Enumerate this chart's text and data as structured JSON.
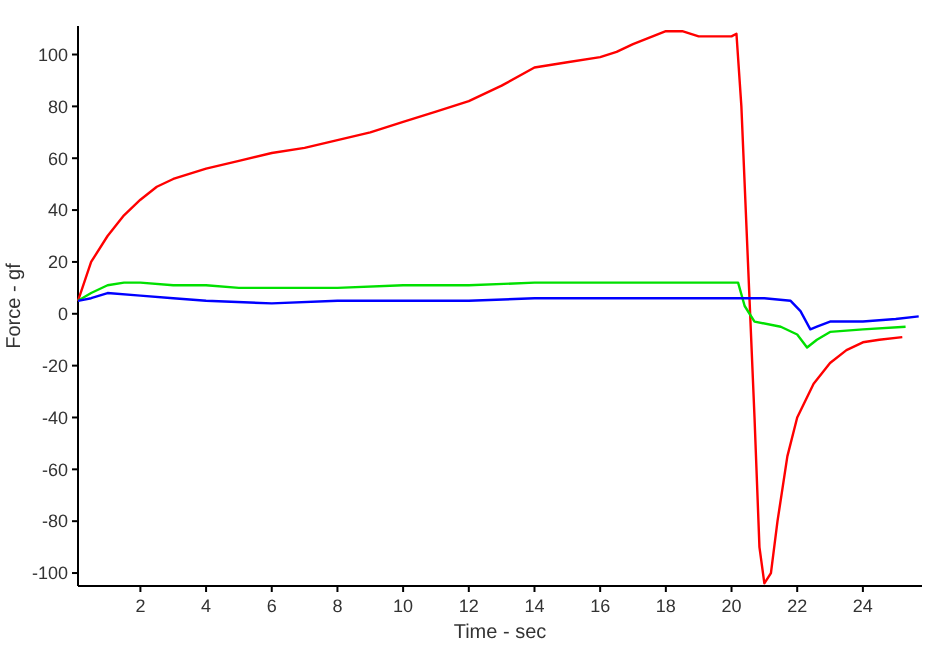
{
  "chart_data": {
    "type": "line",
    "xlabel": "Time - sec",
    "ylabel": "Force - gf",
    "xlim": [
      0.1,
      25.8
    ],
    "ylim": [
      -105,
      111
    ],
    "xticks": [
      2,
      4,
      6,
      8,
      10,
      12,
      14,
      16,
      18,
      20,
      22,
      24
    ],
    "yticks": [
      -100,
      -80,
      -60,
      -40,
      -20,
      0,
      20,
      40,
      60,
      80,
      100
    ],
    "marker": "none",
    "line_style": "solid",
    "series": [
      {
        "color": "#ff0000",
        "x": [
          0.1,
          0.5,
          1,
          1.5,
          2,
          2.5,
          3,
          4,
          5,
          6,
          7,
          8,
          9,
          10,
          11,
          12,
          13,
          14,
          15,
          16,
          16.5,
          17,
          18,
          18.5,
          19,
          20,
          20.15,
          20.3,
          20.5,
          20.7,
          20.85,
          21,
          21.2,
          21.4,
          21.7,
          22,
          22.5,
          23,
          23.5,
          24,
          24.5,
          25.2
        ],
        "values": [
          5,
          20,
          30,
          38,
          44,
          49,
          52,
          56,
          59,
          62,
          64,
          67,
          70,
          74,
          78,
          82,
          88,
          95,
          97,
          99,
          101,
          104,
          109,
          109,
          107,
          107,
          108,
          80,
          20,
          -40,
          -90,
          -104,
          -100,
          -80,
          -55,
          -40,
          -27,
          -19,
          -14,
          -11,
          -10,
          -9
        ]
      },
      {
        "color": "#00e000",
        "x": [
          0.1,
          0.5,
          1,
          1.5,
          2,
          3,
          4,
          5,
          6,
          8,
          10,
          12,
          14,
          16,
          18,
          20,
          20.2,
          20.4,
          20.7,
          21.5,
          22,
          22.3,
          22.6,
          23,
          24,
          25.3
        ],
        "values": [
          5,
          8,
          11,
          12,
          12,
          11,
          11,
          10,
          10,
          10,
          11,
          11,
          12,
          12,
          12,
          12,
          12,
          3,
          -3,
          -5,
          -8,
          -13,
          -10,
          -7,
          -6,
          -5
        ]
      },
      {
        "color": "#0000ff",
        "x": [
          0.1,
          0.5,
          1,
          2,
          3,
          4,
          6,
          8,
          10,
          12,
          14,
          20,
          21,
          21.8,
          22.1,
          22.4,
          22.6,
          23,
          24,
          25,
          25.7
        ],
        "values": [
          5,
          6,
          8,
          7,
          6,
          5,
          4,
          5,
          5,
          5,
          6,
          6,
          6,
          5,
          1,
          -6,
          -5,
          -3,
          -3,
          -2,
          -1
        ]
      }
    ]
  }
}
